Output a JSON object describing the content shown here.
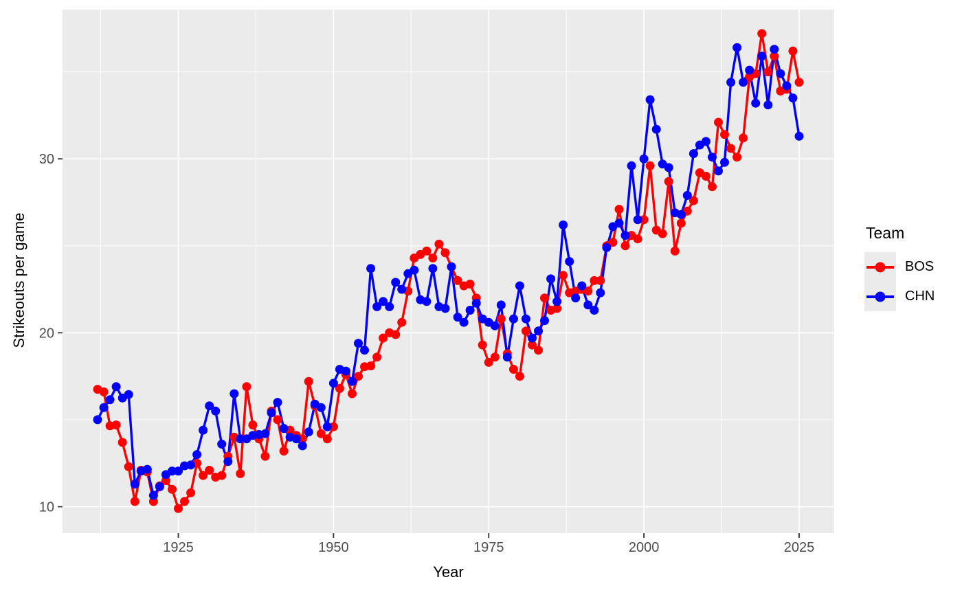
{
  "chart_data": {
    "type": "line",
    "title": "",
    "xlabel": "Year",
    "ylabel": "Strikeouts per game",
    "legend": {
      "title": "Team",
      "position": "right"
    },
    "panel_bg": "#EBEBEB",
    "grid_color": "#FFFFFF",
    "tick_text_color": "#4D4D4D",
    "tick_mark_color": "#333333",
    "xlim": [
      1906.35,
      2030.65
    ],
    "ylim": [
      8.48,
      38.58
    ],
    "x_ticks": [
      1925,
      1950,
      1975,
      2000,
      2025
    ],
    "x_minor_ticks": [
      1912.5,
      1937.5,
      1962.5,
      1987.5,
      2012.5
    ],
    "y_ticks": [
      10,
      20,
      30
    ],
    "y_minor_ticks": [
      15,
      25,
      35
    ],
    "grid": "major and minor white gridlines on grey panel",
    "years": [
      1912,
      1913,
      1914,
      1915,
      1916,
      1917,
      1918,
      1919,
      1920,
      1921,
      1922,
      1923,
      1924,
      1925,
      1926,
      1927,
      1928,
      1929,
      1930,
      1931,
      1932,
      1933,
      1934,
      1935,
      1936,
      1937,
      1938,
      1939,
      1940,
      1941,
      1942,
      1943,
      1944,
      1945,
      1946,
      1947,
      1948,
      1949,
      1950,
      1951,
      1952,
      1953,
      1954,
      1955,
      1956,
      1957,
      1958,
      1959,
      1960,
      1961,
      1962,
      1963,
      1964,
      1965,
      1966,
      1967,
      1968,
      1969,
      1970,
      1971,
      1972,
      1973,
      1974,
      1975,
      1976,
      1977,
      1978,
      1979,
      1980,
      1981,
      1982,
      1983,
      1984,
      1985,
      1986,
      1987,
      1988,
      1989,
      1990,
      1991,
      1992,
      1993,
      1994,
      1995,
      1996,
      1997,
      1998,
      1999,
      2000,
      2001,
      2002,
      2003,
      2004,
      2005,
      2006,
      2007,
      2008,
      2009,
      2010,
      2011,
      2012,
      2013,
      2014,
      2015,
      2016,
      2017,
      2018,
      2019,
      2020,
      2021,
      2022,
      2023,
      2024,
      2025
    ],
    "series": [
      {
        "name": "BOS",
        "color": "#FF0000",
        "values": [
          16.75,
          16.6,
          14.65,
          14.7,
          13.7,
          12.3,
          10.3,
          12.1,
          12.0,
          10.3,
          11.2,
          11.5,
          11.0,
          9.9,
          10.3,
          10.8,
          12.5,
          11.8,
          12.1,
          11.7,
          11.8,
          12.9,
          14.0,
          11.9,
          16.9,
          14.7,
          13.9,
          12.9,
          15.5,
          15.0,
          13.2,
          14.4,
          14.1,
          13.9,
          17.2,
          15.8,
          14.2,
          13.9,
          14.6,
          16.8,
          17.6,
          16.5,
          17.5,
          18.05,
          18.1,
          18.6,
          19.7,
          20.0,
          19.9,
          20.6,
          22.4,
          24.3,
          24.5,
          24.7,
          24.3,
          25.1,
          24.6,
          23.8,
          23.0,
          22.7,
          22.8,
          22.0,
          19.3,
          18.3,
          18.6,
          20.8,
          18.8,
          17.9,
          17.5,
          20.1,
          19.3,
          19.0,
          22.0,
          21.3,
          21.4,
          23.3,
          22.3,
          22.4,
          22.5,
          22.4,
          23.0,
          23.0,
          25.0,
          25.2,
          27.1,
          25.0,
          25.6,
          25.4,
          26.5,
          29.6,
          25.9,
          25.7,
          28.7,
          24.7,
          26.3,
          27.0,
          27.6,
          29.2,
          29.0,
          28.4,
          32.1,
          31.4,
          30.6,
          30.1,
          31.2,
          34.7,
          34.9,
          37.2,
          35.0,
          35.9,
          33.9,
          34.0,
          36.2,
          34.4
        ]
      },
      {
        "name": "CHN",
        "color": "#0000FF",
        "values": [
          15.0,
          15.7,
          16.15,
          16.9,
          16.25,
          16.45,
          11.3,
          12.05,
          12.15,
          10.65,
          11.15,
          11.85,
          12.05,
          12.05,
          12.35,
          12.4,
          13.0,
          14.4,
          15.8,
          15.5,
          13.6,
          12.6,
          16.5,
          13.9,
          13.9,
          14.1,
          14.15,
          14.2,
          15.4,
          16.0,
          14.5,
          14.0,
          13.9,
          13.5,
          14.3,
          15.9,
          15.7,
          14.6,
          17.1,
          17.9,
          17.8,
          17.2,
          19.4,
          19.0,
          23.7,
          21.5,
          21.8,
          21.5,
          22.9,
          22.5,
          23.4,
          23.6,
          21.9,
          21.8,
          23.7,
          21.5,
          21.4,
          23.8,
          20.9,
          20.6,
          21.3,
          21.7,
          20.8,
          20.6,
          20.4,
          21.6,
          18.6,
          20.8,
          22.7,
          20.8,
          19.7,
          20.1,
          20.7,
          23.1,
          21.8,
          26.2,
          24.1,
          22.0,
          22.7,
          21.6,
          21.3,
          22.3,
          24.9,
          26.1,
          26.3,
          25.6,
          29.6,
          26.5,
          30.0,
          33.4,
          31.7,
          29.7,
          29.5,
          26.9,
          26.8,
          27.9,
          30.3,
          30.8,
          31.0,
          30.1,
          29.3,
          29.8,
          34.4,
          36.4,
          34.4,
          35.1,
          33.2,
          35.9,
          33.1,
          36.3,
          34.9,
          34.2,
          33.5,
          31.3
        ]
      }
    ]
  }
}
